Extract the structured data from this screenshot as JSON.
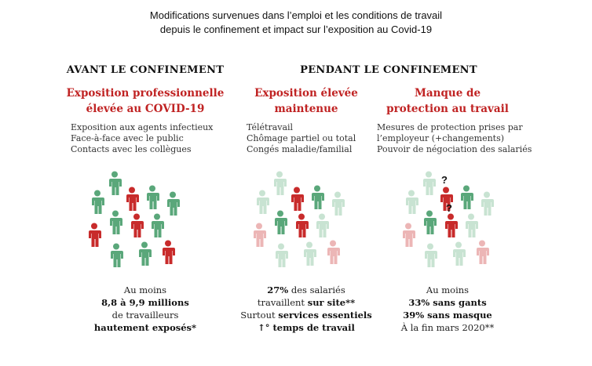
{
  "title": {
    "line1": "Modifications survenues dans l’emploi et les conditions de travail",
    "line2": "depuis le confinement et impact sur l’exposition au Covid-19"
  },
  "sections": {
    "avant": "AVANT LE CONFINEMENT",
    "pendant": "PENDANT LE CONFINEMENT"
  },
  "colors": {
    "red": "#c82b2b",
    "green": "#5aa77a",
    "light_red": "#ecb6b6",
    "light_green": "#c8e3d2",
    "heading_red": "#c02323"
  },
  "columns": [
    {
      "heading": [
        "Exposition professionnelle",
        "élevée au COVID-19"
      ],
      "items": [
        "Exposition aux agents infectieux",
        "Face-à-face avec le public",
        "Contacts avec les collègues"
      ],
      "stat": {
        "l1": "Au moins",
        "l2": "8,8 à 9,9 millions",
        "l3": "de travailleurs",
        "l4": "hautement exposés*"
      }
    },
    {
      "heading": [
        "Exposition élevée",
        "maintenue"
      ],
      "items": [
        "Télétravail",
        "Chômage partiel ou total",
        "Congés maladie/familial"
      ],
      "stat": {
        "l1_bold": "27%",
        "l1_rest": " des salariés",
        "l2_pre": "travaillent ",
        "l2_bold": "sur site**",
        "l3_pre": "Surtout ",
        "l3_bold": "services essentiels",
        "l4": "↑° temps de travail"
      }
    },
    {
      "heading": [
        "Manque de",
        "protection au travail"
      ],
      "items": [
        "Mesures de protection prises par",
        "l’employeur (+changements)",
        "Pouvoir de négociation des salariés"
      ],
      "stat": {
        "l1": "Au moins",
        "l2": "33% sans gants",
        "l3": "39% sans masque",
        "l4": "À la fin mars 2020**"
      },
      "question_mark": "?"
    }
  ]
}
